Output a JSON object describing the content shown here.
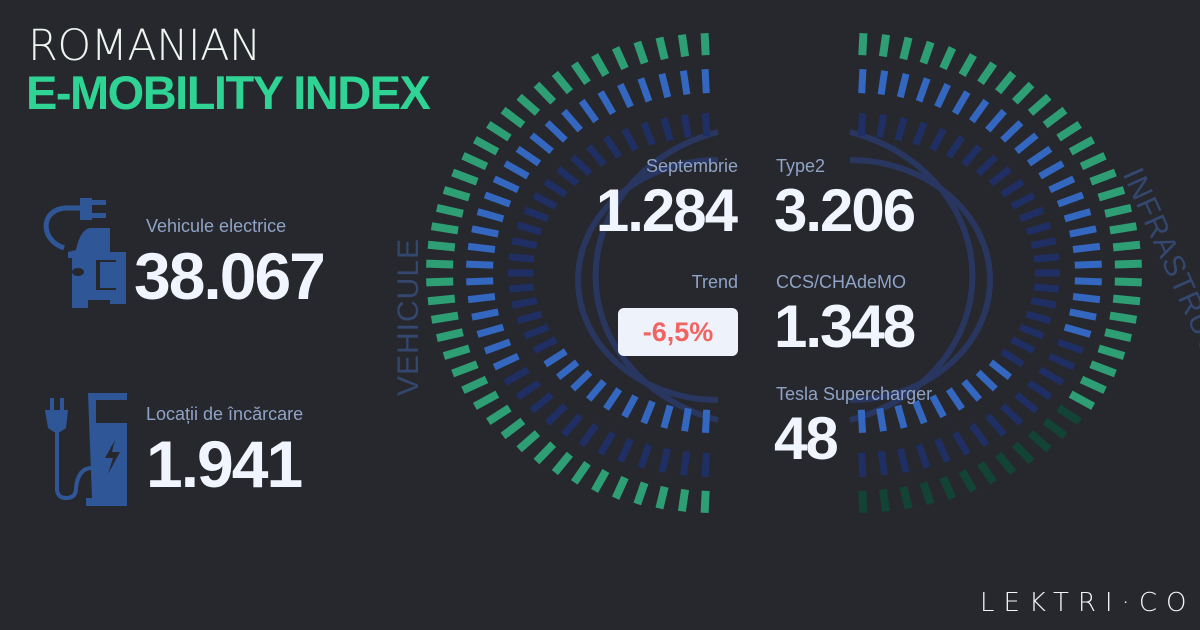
{
  "header": {
    "line1": "ROMANIAN",
    "line2": "E-MOBILITY INDEX"
  },
  "left_stats": [
    {
      "icon": "car-plug-icon",
      "label": "Vehicule electrice",
      "value": "38.067"
    },
    {
      "icon": "charging-station-icon",
      "label": "Locații de încărcare",
      "value": "1.941"
    }
  ],
  "vehicle_panel": {
    "section_label": "VEHICULE",
    "month_label": "Septembrie",
    "month_value": "1.284",
    "trend_label": "Trend",
    "trend_value": "-6,5%"
  },
  "infra_panel": {
    "section_label": "INFRASTRUCTURĂ",
    "items": [
      {
        "label": "Type2",
        "value": "3.206"
      },
      {
        "label": "CCS/CHAdeMO",
        "value": "1.348"
      },
      {
        "label": "Tesla Supercharger",
        "value": "48"
      }
    ]
  },
  "gauges": {
    "left": [
      {
        "ring": "outer",
        "bright": "#2e9e74",
        "dim": "#1d5b45",
        "range": [
          0,
          1
        ]
      },
      {
        "ring": "middle",
        "bright": "#3467c0",
        "dim": "#1f2f63",
        "range": [
          0,
          0.68
        ]
      },
      {
        "ring": "inner",
        "bright": "#3467c0",
        "dim": "#1f2f63",
        "range": [
          0.67,
          1
        ]
      }
    ],
    "right": [
      {
        "ring": "outer",
        "bright": "#2e9e74",
        "dim": "#124334",
        "range": [
          0,
          0.69
        ]
      },
      {
        "ring": "middle",
        "bright": "#3467c0",
        "dim": "#1f2f63",
        "range": [
          0,
          0.6
        ]
      },
      {
        "ring": "inner",
        "bright": "#3467c0",
        "dim": "#1f2f63",
        "range": [
          0.72,
          1
        ]
      }
    ]
  },
  "colors": {
    "accent": "#2fd495",
    "negative": "#f06461",
    "icon": "#2f5797"
  },
  "brand": {
    "logo": "LEKTRI·CO"
  }
}
